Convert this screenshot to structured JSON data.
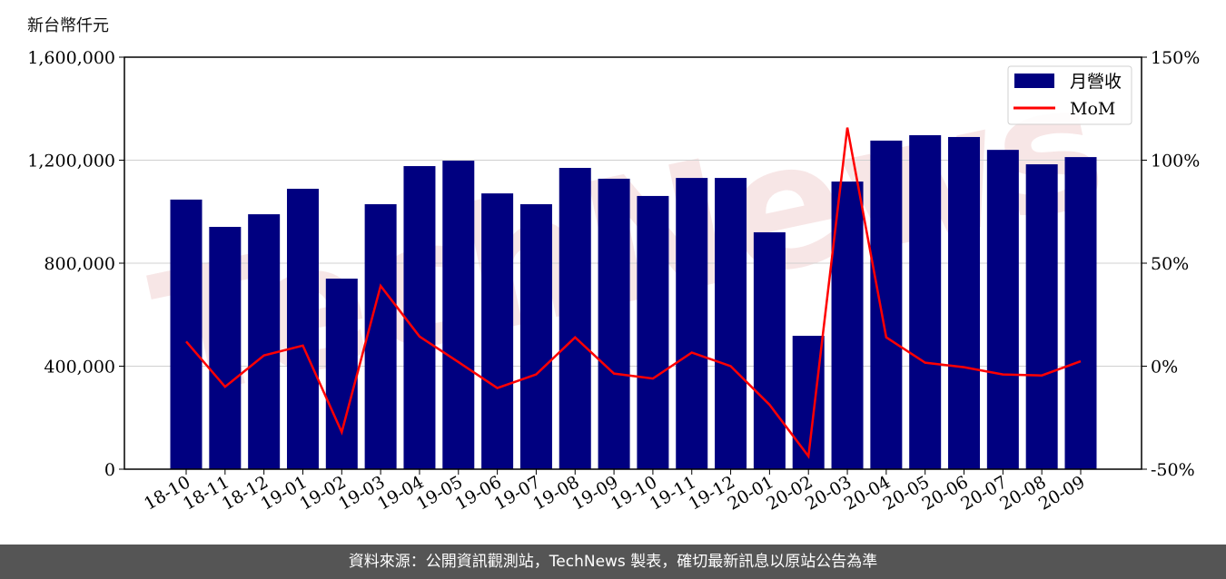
{
  "unit_label": "新台幣仟元",
  "footer": "資料來源：公開資訊觀測站，TechNews 製表，確切最新訊息以原站公告為準",
  "watermark": "TechNews",
  "colors": {
    "bar": "#000080",
    "line": "#ff0000",
    "footer_bg": "#555555"
  },
  "chart_data": {
    "type": "bar+line",
    "categories": [
      "18-10",
      "18-11",
      "18-12",
      "19-01",
      "19-02",
      "19-03",
      "19-04",
      "19-05",
      "19-06",
      "19-07",
      "19-08",
      "19-09",
      "19-10",
      "19-11",
      "19-12",
      "20-01",
      "20-02",
      "20-03",
      "20-04",
      "20-05",
      "20-06",
      "20-07",
      "20-08",
      "20-09"
    ],
    "series": [
      {
        "name": "月營收",
        "type": "bar",
        "axis": "left",
        "values": [
          1047000,
          941000,
          990000,
          1089000,
          740000,
          1029000,
          1177000,
          1198000,
          1071000,
          1029000,
          1170000,
          1128000,
          1061000,
          1131000,
          1131000,
          920000,
          518000,
          1117000,
          1276000,
          1297000,
          1290000,
          1240000,
          1184000,
          1212000
        ]
      },
      {
        "name": "MoM",
        "type": "line",
        "axis": "right",
        "values": [
          12,
          -10,
          5.2,
          10,
          -32,
          39,
          14.4,
          2,
          -10.6,
          -4,
          14,
          -3.6,
          -6,
          6.6,
          0,
          -18.7,
          -43.7,
          115.8,
          14,
          1.7,
          -0.5,
          -4,
          -4.5,
          2.4
        ]
      }
    ],
    "left_axis": {
      "range": [
        0,
        1600000
      ],
      "ticks": [
        0,
        400000,
        800000,
        1200000,
        1600000
      ],
      "tick_labels": [
        "0",
        "400,000",
        "800,000",
        "1,200,000",
        "1,600,000"
      ]
    },
    "right_axis": {
      "range": [
        -50,
        150
      ],
      "ticks": [
        -50,
        0,
        50,
        100,
        150
      ],
      "tick_labels": [
        "-50%",
        "0%",
        "50%",
        "100%",
        "150%"
      ]
    },
    "grid": true,
    "legend": {
      "position": "top-right",
      "entries": [
        "月營收",
        "MoM"
      ]
    }
  }
}
